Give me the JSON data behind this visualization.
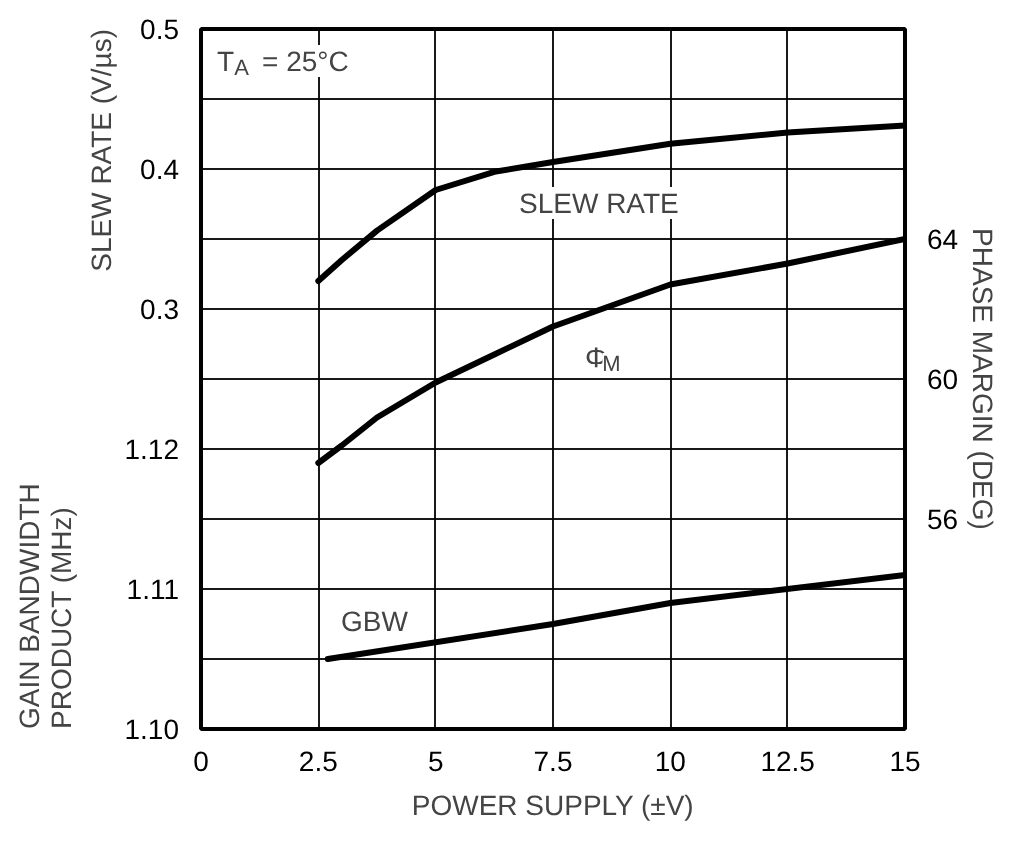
{
  "chart_data": {
    "type": "line",
    "xlabel": "POWER SUPPLY (±V)",
    "ylabel": "SLEW RATE (V/µs)",
    "y2label": "PHASE MARGIN (DEG)",
    "y3label": "GAIN BANDWIDTH\nPRODUCT (MHz)",
    "annotations": [
      "T$_{A}$ = 25°C"
    ],
    "xlim": [
      0,
      15
    ],
    "xticks": [
      0,
      2.5,
      5,
      7.5,
      10,
      12.5,
      15
    ],
    "ylim": [
      0,
      0.5
    ],
    "yticks": [
      0.3,
      {
        "value": 0.35,
        "label": null
      },
      0.4,
      {
        "value": 0.45,
        "label": null
      },
      0.5
    ],
    "y2lim": [
      50,
      70
    ],
    "y2ticks": [
      56,
      {
        "value": 58,
        "label": null
      },
      60,
      {
        "value": 62,
        "label": null
      },
      64
    ],
    "y3lim": [
      1.1,
      1.15
    ],
    "y3ticks": [
      {
        "value": 1.1,
        "label": "1.10"
      },
      {
        "value": 1.105,
        "label": null
      },
      1.11,
      {
        "value": 1.115,
        "label": null
      },
      1.12
    ],
    "grid": true,
    "marker": "none",
    "line_style": "solid",
    "series": [
      {
        "name": "SLEW RATE",
        "color": "#000000",
        "x": [
          2.5,
          3,
          3.75,
          5,
          6.25,
          7.5,
          10,
          12.5,
          15
        ],
        "values": [
          0.32,
          0.335,
          0.356,
          0.385,
          0.398,
          0.405,
          0.418,
          0.426,
          0.431
        ]
      },
      {
        "name": "Φ$_{M}$",
        "color": "#000000",
        "axis": "y2",
        "x": [
          2.5,
          3,
          3.75,
          5,
          6.25,
          7.5,
          10,
          12.5,
          15
        ],
        "values": [
          57.6,
          58.1,
          58.9,
          59.9,
          60.7,
          61.5,
          62.7,
          63.3,
          64
        ]
      },
      {
        "name": "GBW",
        "color": "#000000",
        "axis": "y3",
        "x": [
          2.7,
          7.5,
          10,
          15
        ],
        "values": [
          1.105,
          1.1075,
          1.109,
          1.111
        ]
      }
    ]
  }
}
